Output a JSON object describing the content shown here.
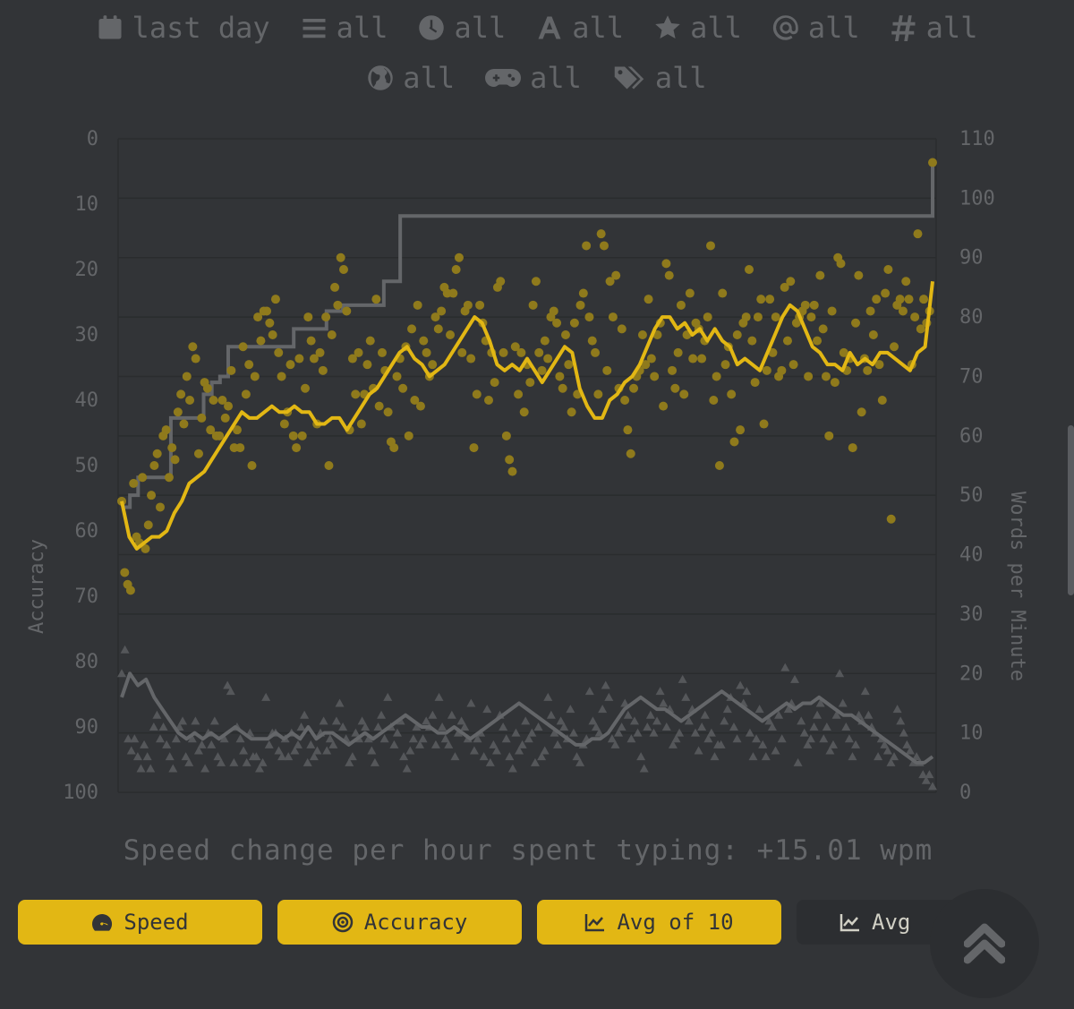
{
  "filters": {
    "date": {
      "label": "last day",
      "icon": "calendar-icon"
    },
    "mode": {
      "label": "all",
      "icon": "bars-icon"
    },
    "time": {
      "label": "all",
      "icon": "clock-icon"
    },
    "language": {
      "label": "all",
      "icon": "letter-a-icon"
    },
    "difficulty": {
      "label": "all",
      "icon": "star-icon"
    },
    "punctuation": {
      "label": "all",
      "icon": "at-icon"
    },
    "numbers": {
      "label": "all",
      "icon": "hash-icon"
    },
    "quote": {
      "label": "all",
      "icon": "globe-icon"
    },
    "funbox": {
      "label": "all",
      "icon": "gamepad-icon"
    },
    "tags": {
      "label": "all",
      "icon": "tags-icon"
    }
  },
  "speed_change": "Speed change per hour spent typing: +15.01 wpm",
  "buttons": {
    "speed": "Speed",
    "accuracy": "Accuracy",
    "avg10": "Avg of 10",
    "avg": "Avg"
  },
  "colors": {
    "accent": "#e2b714",
    "background": "#323437",
    "sub": "#646669",
    "text": "#d1d0c5"
  },
  "chart_data": {
    "type": "scatter",
    "xlabel": "",
    "left_axis": {
      "label": "Accuracy",
      "ticks": [
        "0",
        "10",
        "20",
        "30",
        "40",
        "50",
        "60",
        "70",
        "80",
        "90",
        "100"
      ],
      "range": [
        0,
        100
      ],
      "inverted": true
    },
    "right_axis": {
      "label": "Words per Minute",
      "ticks": [
        "110",
        "100",
        "90",
        "80",
        "70",
        "60",
        "50",
        "40",
        "30",
        "20",
        "10",
        "0"
      ],
      "range": [
        0,
        110
      ]
    },
    "grid": true,
    "series": [
      {
        "kind": "personal-best-step",
        "axis": "wpm",
        "values": [
          48,
          50,
          53,
          53,
          53,
          53,
          63,
          63,
          63,
          63,
          67,
          69,
          70,
          75,
          75,
          75,
          75,
          75,
          75,
          75,
          75,
          78,
          78,
          78,
          78,
          81,
          81,
          82,
          82,
          82,
          82,
          82,
          86,
          86,
          97,
          97,
          97,
          97,
          97,
          97,
          97,
          97,
          97,
          97,
          97,
          97,
          97,
          97,
          97,
          97,
          97,
          97,
          97,
          97,
          97,
          97,
          97,
          97,
          97,
          97,
          97,
          97,
          97,
          97,
          97,
          97,
          97,
          97,
          97,
          97,
          97,
          97,
          97,
          97,
          97,
          97,
          97,
          97,
          97,
          97,
          97,
          97,
          97,
          97,
          97,
          97,
          97,
          97,
          97,
          97,
          97,
          97,
          97,
          97,
          97,
          97,
          97,
          97,
          97,
          106
        ]
      },
      {
        "kind": "wpm-points",
        "axis": "wpm",
        "values": [
          49,
          37,
          35,
          34,
          52,
          43,
          42,
          53,
          41,
          45,
          50,
          55,
          57,
          48,
          60,
          61,
          53,
          58,
          56,
          64,
          67,
          62,
          70,
          66,
          75,
          73,
          57,
          63,
          69,
          68,
          61,
          66,
          60,
          60,
          66,
          63,
          65,
          71,
          58,
          61,
          58,
          75,
          67,
          72,
          55,
          70,
          80,
          76,
          81,
          81,
          79,
          77,
          83,
          74,
          70,
          62,
          64,
          72,
          60,
          58,
          73,
          60,
          68,
          80,
          76,
          73,
          62,
          74,
          71,
          80,
          55,
          77,
          85,
          82,
          90,
          88,
          81,
          61,
          73,
          67,
          74,
          62,
          67,
          72,
          76,
          68,
          83,
          65,
          74,
          71,
          64,
          59,
          58,
          70,
          73,
          68,
          75,
          60,
          78,
          66,
          82,
          65,
          76,
          74,
          70,
          72,
          80,
          78,
          81,
          85,
          84,
          77,
          84,
          88,
          90,
          74,
          81,
          82,
          73,
          58,
          67,
          82,
          79,
          76,
          66,
          74,
          69,
          85,
          86,
          74,
          60,
          56,
          54,
          75,
          67,
          74,
          64,
          72,
          69,
          82,
          86,
          74,
          71,
          76,
          73,
          80,
          81,
          79,
          70,
          68,
          77,
          72,
          64,
          79,
          67,
          82,
          84,
          92,
          80,
          76,
          74,
          67,
          94,
          92,
          71,
          86,
          80,
          87,
          68,
          78,
          66,
          61,
          57,
          68,
          70,
          71,
          77,
          72,
          83,
          73,
          70,
          77,
          79,
          65,
          89,
          87,
          71,
          68,
          74,
          82,
          67,
          77,
          84,
          73,
          79,
          78,
          73,
          76,
          80,
          92,
          66,
          70,
          55,
          84,
          72,
          75,
          67,
          59,
          77,
          61,
          79,
          80,
          88,
          76,
          69,
          80,
          83,
          62,
          71,
          83,
          74,
          80,
          70,
          71,
          85,
          76,
          86,
          72,
          79,
          80,
          81,
          82,
          70,
          80,
          82,
          76,
          87,
          78,
          70,
          60,
          81,
          69,
          90,
          89,
          74,
          71,
          73,
          58,
          79,
          87,
          64,
          73,
          71,
          81,
          77,
          83,
          72,
          66,
          84,
          88,
          46,
          75,
          82,
          83,
          81,
          86,
          83,
          72,
          80,
          94,
          78,
          83,
          79,
          81,
          106
        ]
      },
      {
        "kind": "wpm-avg-of-10",
        "axis": "wpm",
        "values": [
          49,
          43,
          41,
          42,
          43,
          43,
          44,
          47,
          49,
          52,
          53,
          54,
          56,
          58,
          60,
          62,
          64,
          63,
          63,
          64,
          65,
          64,
          64,
          65,
          64,
          64,
          62,
          62,
          63,
          63,
          61,
          63,
          65,
          67,
          68,
          70,
          72,
          74,
          75,
          73,
          72,
          70,
          71,
          72,
          74,
          76,
          78,
          80,
          79,
          76,
          72,
          71,
          72,
          71,
          73,
          71,
          69,
          71,
          73,
          75,
          74,
          68,
          65,
          63,
          63,
          66,
          67,
          69,
          70,
          72,
          75,
          78,
          80,
          80,
          78,
          79,
          77,
          78,
          76,
          78,
          76,
          75,
          72,
          73,
          72,
          71,
          74,
          77,
          80,
          82,
          81,
          78,
          75,
          74,
          72,
          72,
          71,
          74,
          72,
          73,
          72,
          74,
          74,
          73,
          72,
          71,
          74,
          75,
          86
        ]
      },
      {
        "kind": "error-points",
        "axis": "wpm",
        "values": [
          20,
          24,
          9,
          7,
          9,
          6,
          4,
          8,
          6,
          4,
          11,
          13,
          9,
          11,
          8,
          6,
          4,
          9,
          11,
          12,
          6,
          5,
          9,
          12,
          7,
          8,
          4,
          10,
          8,
          12,
          6,
          5,
          9,
          18,
          17,
          5,
          11,
          9,
          7,
          5,
          10,
          6,
          6,
          4,
          5,
          16,
          8,
          10,
          10,
          7,
          6,
          9,
          6,
          10,
          7,
          8,
          11,
          13,
          5,
          8,
          6,
          7,
          10,
          12,
          7,
          9,
          8,
          12,
          15,
          11,
          9,
          5,
          6,
          10,
          9,
          12,
          11,
          9,
          7,
          5,
          11,
          13,
          9,
          16,
          11,
          8,
          10,
          12,
          6,
          4,
          7,
          9,
          11,
          8,
          9,
          12,
          11,
          13,
          8,
          16,
          11,
          9,
          8,
          13,
          6,
          10,
          12,
          11,
          9,
          15,
          7,
          9,
          10,
          6,
          14,
          5,
          8,
          7,
          13,
          11,
          9,
          6,
          4,
          10,
          7,
          8,
          12,
          9,
          10,
          5,
          11,
          6,
          7,
          16,
          13,
          10,
          8,
          12,
          11,
          9,
          14,
          10,
          6,
          5,
          8,
          9,
          17,
          12,
          11,
          10,
          14,
          18,
          16,
          9,
          8,
          10,
          11,
          15,
          13,
          9,
          12,
          10,
          6,
          4,
          11,
          13,
          10,
          12,
          17,
          15,
          11,
          14,
          8,
          9,
          10,
          19,
          16,
          12,
          14,
          10,
          7,
          11,
          13,
          9,
          10,
          6,
          8,
          8,
          12,
          14,
          16,
          11,
          9,
          18,
          15,
          17,
          10,
          6,
          9,
          14,
          8,
          6,
          12,
          11,
          7,
          13,
          9,
          21,
          14,
          15,
          19,
          5,
          12,
          10,
          8,
          9,
          11,
          13,
          15,
          9,
          11,
          7,
          8,
          13,
          20,
          15,
          11,
          9,
          6,
          8,
          13,
          12,
          17,
          13,
          11,
          10,
          6,
          9,
          8,
          7,
          5,
          6,
          14,
          12,
          10,
          8,
          7,
          5,
          6,
          5,
          3,
          2,
          3,
          1
        ]
      },
      {
        "kind": "error-avg",
        "axis": "wpm",
        "values": [
          16,
          20,
          18,
          19,
          16,
          14,
          12,
          10,
          9,
          10,
          9,
          10,
          9,
          10,
          11,
          10,
          9,
          9,
          9,
          10,
          9,
          10,
          9,
          11,
          9,
          10,
          10,
          9,
          8,
          9,
          10,
          9,
          10,
          11,
          12,
          13,
          12,
          11,
          11,
          10,
          10,
          11,
          10,
          9,
          10,
          11,
          12,
          13,
          14,
          15,
          14,
          13,
          12,
          11,
          10,
          9,
          8,
          8,
          9,
          9,
          10,
          12,
          14,
          15,
          16,
          15,
          14,
          14,
          13,
          12,
          13,
          14,
          15,
          16,
          17,
          16,
          15,
          14,
          13,
          12,
          13,
          14,
          15,
          14,
          15,
          15,
          16,
          15,
          14,
          13,
          13,
          12,
          11,
          10,
          9,
          8,
          7,
          6,
          5,
          5,
          6
        ]
      }
    ]
  }
}
